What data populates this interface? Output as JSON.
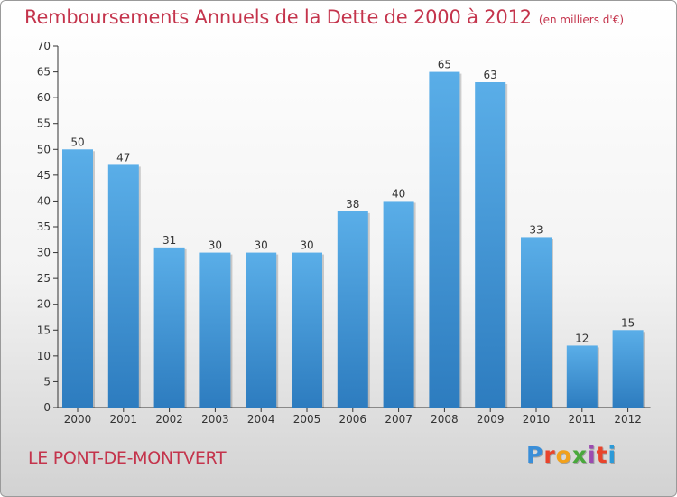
{
  "header": {
    "title": "Remboursements Annuels de la Dette de 2000 à 2012",
    "unit": "(en milliers d'€)"
  },
  "footer": {
    "city": "LE PONT-DE-MONTVERT",
    "logo": {
      "text": "Proxiti",
      "colors": [
        "#3a8ed8",
        "#e8442c",
        "#f2a11c",
        "#49a83c",
        "#9b4bb0",
        "#e8442c",
        "#2c9ad8"
      ]
    }
  },
  "colors": {
    "bar_top": "#5aaee8",
    "bar_bottom": "#2d7cbf",
    "title": "#c4344c"
  },
  "chart_data": {
    "type": "bar",
    "title": "Remboursements Annuels de la Dette de 2000 à 2012",
    "categories": [
      "2000",
      "2001",
      "2002",
      "2003",
      "2004",
      "2005",
      "2006",
      "2007",
      "2008",
      "2009",
      "2010",
      "2011",
      "2012"
    ],
    "values": [
      50,
      47,
      31,
      30,
      30,
      30,
      38,
      40,
      65,
      63,
      33,
      12,
      15
    ],
    "ylim": [
      0,
      70
    ],
    "yticks": [
      0,
      5,
      10,
      15,
      20,
      25,
      30,
      35,
      40,
      45,
      50,
      55,
      60,
      65,
      70
    ],
    "grid": false,
    "xlabel": "",
    "ylabel": ""
  }
}
